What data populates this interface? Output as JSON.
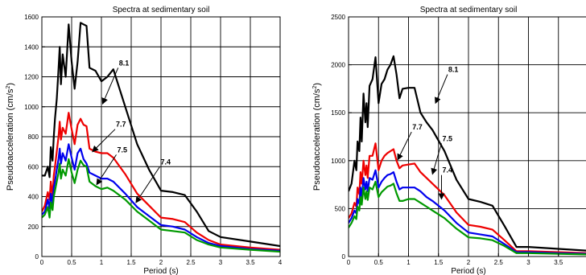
{
  "chart_data": [
    {
      "type": "line",
      "title": "Spectra at sedimentary soil",
      "xlabel": "Period (s)",
      "ylabel_main": "Pseudoacceleration (cm/s",
      "ylabel_sup": "2",
      "ylabel_tail": ")",
      "xlim": [
        0,
        4
      ],
      "ylim": [
        0,
        1600
      ],
      "xticks": [
        0,
        0.5,
        1,
        1.5,
        2,
        2.5,
        3,
        3.5,
        4
      ],
      "yticks": [
        0,
        200,
        400,
        600,
        800,
        1000,
        1200,
        1400,
        1600
      ],
      "grid": true,
      "series": [
        {
          "name": "8.1",
          "color": "#000000",
          "x": [
            0,
            0.05,
            0.1,
            0.13,
            0.15,
            0.18,
            0.2,
            0.22,
            0.25,
            0.28,
            0.3,
            0.32,
            0.35,
            0.4,
            0.45,
            0.5,
            0.55,
            0.6,
            0.65,
            0.7,
            0.75,
            0.8,
            0.9,
            1.0,
            1.1,
            1.2,
            1.4,
            1.6,
            1.8,
            2.0,
            2.2,
            2.4,
            2.6,
            2.8,
            3.0,
            3.5,
            4.0
          ],
          "y": [
            540,
            540,
            600,
            530,
            730,
            640,
            800,
            920,
            1050,
            1250,
            1400,
            1150,
            1350,
            1200,
            1550,
            1300,
            1120,
            1300,
            1560,
            1550,
            1540,
            1260,
            1240,
            1170,
            1200,
            1250,
            1000,
            750,
            580,
            440,
            430,
            410,
            300,
            170,
            130,
            100,
            70
          ]
        },
        {
          "name": "7.7",
          "color": "#ee0000",
          "x": [
            0,
            0.05,
            0.1,
            0.13,
            0.15,
            0.18,
            0.2,
            0.22,
            0.25,
            0.28,
            0.3,
            0.32,
            0.35,
            0.4,
            0.45,
            0.5,
            0.55,
            0.6,
            0.65,
            0.7,
            0.75,
            0.8,
            0.9,
            1.0,
            1.1,
            1.2,
            1.4,
            1.6,
            1.8,
            2.0,
            2.2,
            2.4,
            2.6,
            2.8,
            3.0,
            3.5,
            4.0
          ],
          "y": [
            300,
            340,
            430,
            380,
            500,
            400,
            540,
            600,
            700,
            800,
            900,
            780,
            860,
            820,
            960,
            850,
            750,
            880,
            920,
            880,
            870,
            720,
            700,
            690,
            690,
            660,
            550,
            420,
            340,
            260,
            250,
            230,
            160,
            110,
            80,
            60,
            45
          ]
        },
        {
          "name": "7.5",
          "color": "#0000ee",
          "x": [
            0,
            0.05,
            0.1,
            0.13,
            0.15,
            0.18,
            0.2,
            0.22,
            0.25,
            0.28,
            0.3,
            0.32,
            0.35,
            0.4,
            0.45,
            0.5,
            0.55,
            0.6,
            0.65,
            0.7,
            0.75,
            0.8,
            0.9,
            1.0,
            1.1,
            1.2,
            1.4,
            1.6,
            1.8,
            2.0,
            2.2,
            2.4,
            2.6,
            2.8,
            3.0,
            3.5,
            4.0
          ],
          "y": [
            280,
            300,
            380,
            320,
            420,
            350,
            460,
            500,
            580,
            650,
            720,
            620,
            690,
            640,
            750,
            660,
            580,
            690,
            720,
            650,
            620,
            560,
            540,
            520,
            520,
            500,
            420,
            330,
            270,
            210,
            200,
            180,
            130,
            90,
            70,
            50,
            38
          ]
        },
        {
          "name": "7.4",
          "color": "#009900",
          "x": [
            0,
            0.05,
            0.1,
            0.13,
            0.15,
            0.18,
            0.2,
            0.22,
            0.25,
            0.28,
            0.3,
            0.32,
            0.35,
            0.4,
            0.45,
            0.5,
            0.55,
            0.6,
            0.65,
            0.7,
            0.75,
            0.8,
            0.9,
            1.0,
            1.1,
            1.2,
            1.4,
            1.6,
            1.8,
            2.0,
            2.2,
            2.4,
            2.6,
            2.8,
            3.0,
            3.5,
            4.0
          ],
          "y": [
            260,
            280,
            330,
            260,
            360,
            310,
            400,
            440,
            500,
            560,
            620,
            520,
            580,
            540,
            650,
            560,
            490,
            580,
            640,
            610,
            600,
            500,
            470,
            450,
            460,
            440,
            380,
            300,
            240,
            180,
            170,
            160,
            110,
            80,
            60,
            45,
            32
          ]
        }
      ],
      "annotations": [
        {
          "text": "8.1",
          "x": 1.28,
          "y": 1260,
          "ax": 1.02,
          "ay": 1020
        },
        {
          "text": "7.7",
          "x": 1.23,
          "y": 850,
          "ax": 0.85,
          "ay": 700
        },
        {
          "text": "7.5",
          "x": 1.25,
          "y": 680,
          "ax": 0.92,
          "ay": 480
        },
        {
          "text": "7.4",
          "x": 1.98,
          "y": 600,
          "ax": 1.58,
          "ay": 360
        }
      ]
    },
    {
      "type": "line",
      "title": "Spectra at sedimentary soil",
      "xlabel": "Period (s)",
      "ylabel_main": "Pseudoacceleration (cm/s",
      "ylabel_sup": "2",
      "ylabel_tail": ")",
      "xlim": [
        0,
        4
      ],
      "ylim": [
        0,
        2500
      ],
      "xticks": [
        0,
        0.5,
        1,
        1.5,
        2,
        2.5,
        3,
        3.5
      ],
      "yticks": [
        0,
        500,
        1000,
        1500,
        2000,
        2500
      ],
      "grid": true,
      "series": [
        {
          "name": "8.1",
          "color": "#000000",
          "x": [
            0,
            0.05,
            0.1,
            0.13,
            0.15,
            0.18,
            0.2,
            0.22,
            0.25,
            0.28,
            0.3,
            0.32,
            0.35,
            0.4,
            0.45,
            0.5,
            0.55,
            0.6,
            0.65,
            0.7,
            0.75,
            0.8,
            0.85,
            0.9,
            1.0,
            1.1,
            1.2,
            1.3,
            1.4,
            1.6,
            1.8,
            2.0,
            2.2,
            2.4,
            2.6,
            2.8,
            3.0,
            3.5,
            4.0
          ],
          "y": [
            680,
            760,
            1000,
            900,
            1200,
            1100,
            1450,
            1200,
            1700,
            1400,
            1600,
            1350,
            1780,
            1850,
            2080,
            1600,
            1800,
            1850,
            1950,
            2000,
            2090,
            1900,
            1650,
            1750,
            1760,
            1760,
            1500,
            1400,
            1320,
            1100,
            800,
            600,
            570,
            530,
            320,
            100,
            100,
            80,
            60
          ]
        },
        {
          "name": "7.7",
          "color": "#ee0000",
          "x": [
            0,
            0.05,
            0.1,
            0.13,
            0.15,
            0.18,
            0.2,
            0.22,
            0.25,
            0.28,
            0.3,
            0.32,
            0.35,
            0.4,
            0.45,
            0.5,
            0.55,
            0.6,
            0.65,
            0.7,
            0.75,
            0.8,
            0.85,
            0.9,
            1.0,
            1.1,
            1.2,
            1.3,
            1.4,
            1.6,
            1.8,
            2.0,
            2.2,
            2.4,
            2.6,
            2.8,
            3.0,
            3.5,
            4.0
          ],
          "y": [
            400,
            450,
            560,
            520,
            720,
            650,
            880,
            760,
            1000,
            850,
            950,
            820,
            1050,
            1050,
            1180,
            900,
            1000,
            1050,
            1080,
            1100,
            1120,
            1000,
            920,
            950,
            960,
            970,
            880,
            820,
            760,
            640,
            460,
            330,
            310,
            280,
            170,
            55,
            55,
            45,
            35
          ]
        },
        {
          "name": "7.5",
          "color": "#0000ee",
          "x": [
            0,
            0.05,
            0.1,
            0.13,
            0.15,
            0.18,
            0.2,
            0.22,
            0.25,
            0.28,
            0.3,
            0.32,
            0.35,
            0.4,
            0.45,
            0.5,
            0.55,
            0.6,
            0.65,
            0.7,
            0.75,
            0.8,
            0.85,
            0.9,
            1.0,
            1.1,
            1.2,
            1.3,
            1.4,
            1.6,
            1.8,
            2.0,
            2.2,
            2.4,
            2.6,
            2.8,
            3.0,
            3.5,
            4.0
          ],
          "y": [
            350,
            400,
            480,
            450,
            600,
            550,
            720,
            620,
            820,
            700,
            780,
            680,
            820,
            800,
            900,
            720,
            780,
            820,
            850,
            860,
            880,
            780,
            700,
            720,
            720,
            720,
            680,
            620,
            580,
            480,
            350,
            250,
            230,
            210,
            130,
            45,
            45,
            35,
            28
          ]
        },
        {
          "name": "7.4",
          "color": "#009900",
          "x": [
            0,
            0.05,
            0.1,
            0.13,
            0.15,
            0.18,
            0.2,
            0.22,
            0.25,
            0.28,
            0.3,
            0.32,
            0.35,
            0.4,
            0.45,
            0.5,
            0.55,
            0.6,
            0.65,
            0.7,
            0.75,
            0.8,
            0.85,
            0.9,
            1.0,
            1.1,
            1.2,
            1.3,
            1.4,
            1.6,
            1.8,
            2.0,
            2.2,
            2.4,
            2.6,
            2.8,
            3.0,
            3.5,
            4.0
          ],
          "y": [
            300,
            350,
            420,
            390,
            520,
            480,
            620,
            540,
            720,
            600,
            680,
            590,
            720,
            700,
            780,
            620,
            670,
            700,
            730,
            740,
            760,
            660,
            580,
            580,
            600,
            600,
            560,
            520,
            480,
            400,
            290,
            200,
            190,
            170,
            110,
            35,
            35,
            28,
            22
          ]
        }
      ],
      "annotations": [
        {
          "text": "8.1",
          "x": 1.65,
          "y": 1900,
          "ax": 1.45,
          "ay": 1600
        },
        {
          "text": "7.7",
          "x": 1.05,
          "y": 1300,
          "ax": 0.82,
          "ay": 1010
        },
        {
          "text": "7.5",
          "x": 1.55,
          "y": 1180,
          "ax": 1.4,
          "ay": 860
        },
        {
          "text": "7.4",
          "x": 1.55,
          "y": 850,
          "ax": 1.55,
          "ay": 600
        }
      ]
    }
  ]
}
